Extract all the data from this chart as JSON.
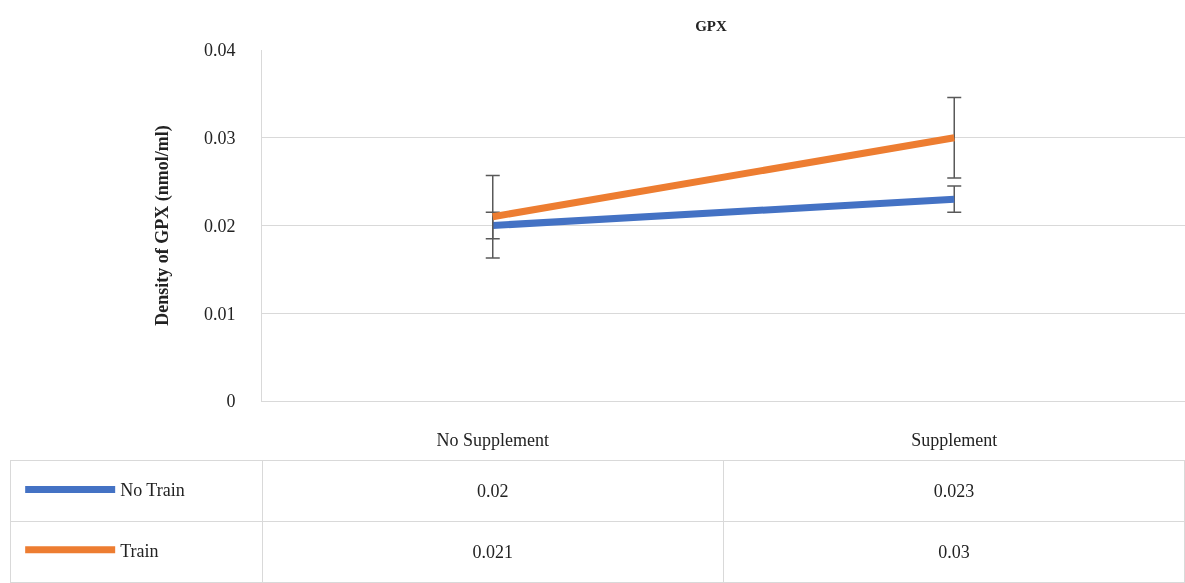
{
  "chart_data": {
    "type": "line",
    "title": "GPX",
    "ylabel": "Density of GPX (nmol/ml)",
    "categories": [
      "No Supplement",
      "Supplement"
    ],
    "series": [
      {
        "name": "No Train",
        "color": "#4472c4",
        "values": [
          0.02,
          0.023
        ],
        "errors": [
          0.0015,
          0.0015
        ]
      },
      {
        "name": "Train",
        "color": "#ed7d31",
        "values": [
          0.021,
          0.03
        ],
        "errors": [
          0.0047,
          0.0046
        ]
      }
    ],
    "ylim": [
      0,
      0.04
    ],
    "yticks": [
      0,
      0.01,
      0.02,
      0.03,
      0.04
    ],
    "grid": "y",
    "legend": "bottom",
    "data_labels": true,
    "marker": "none",
    "line_style": "solid"
  }
}
